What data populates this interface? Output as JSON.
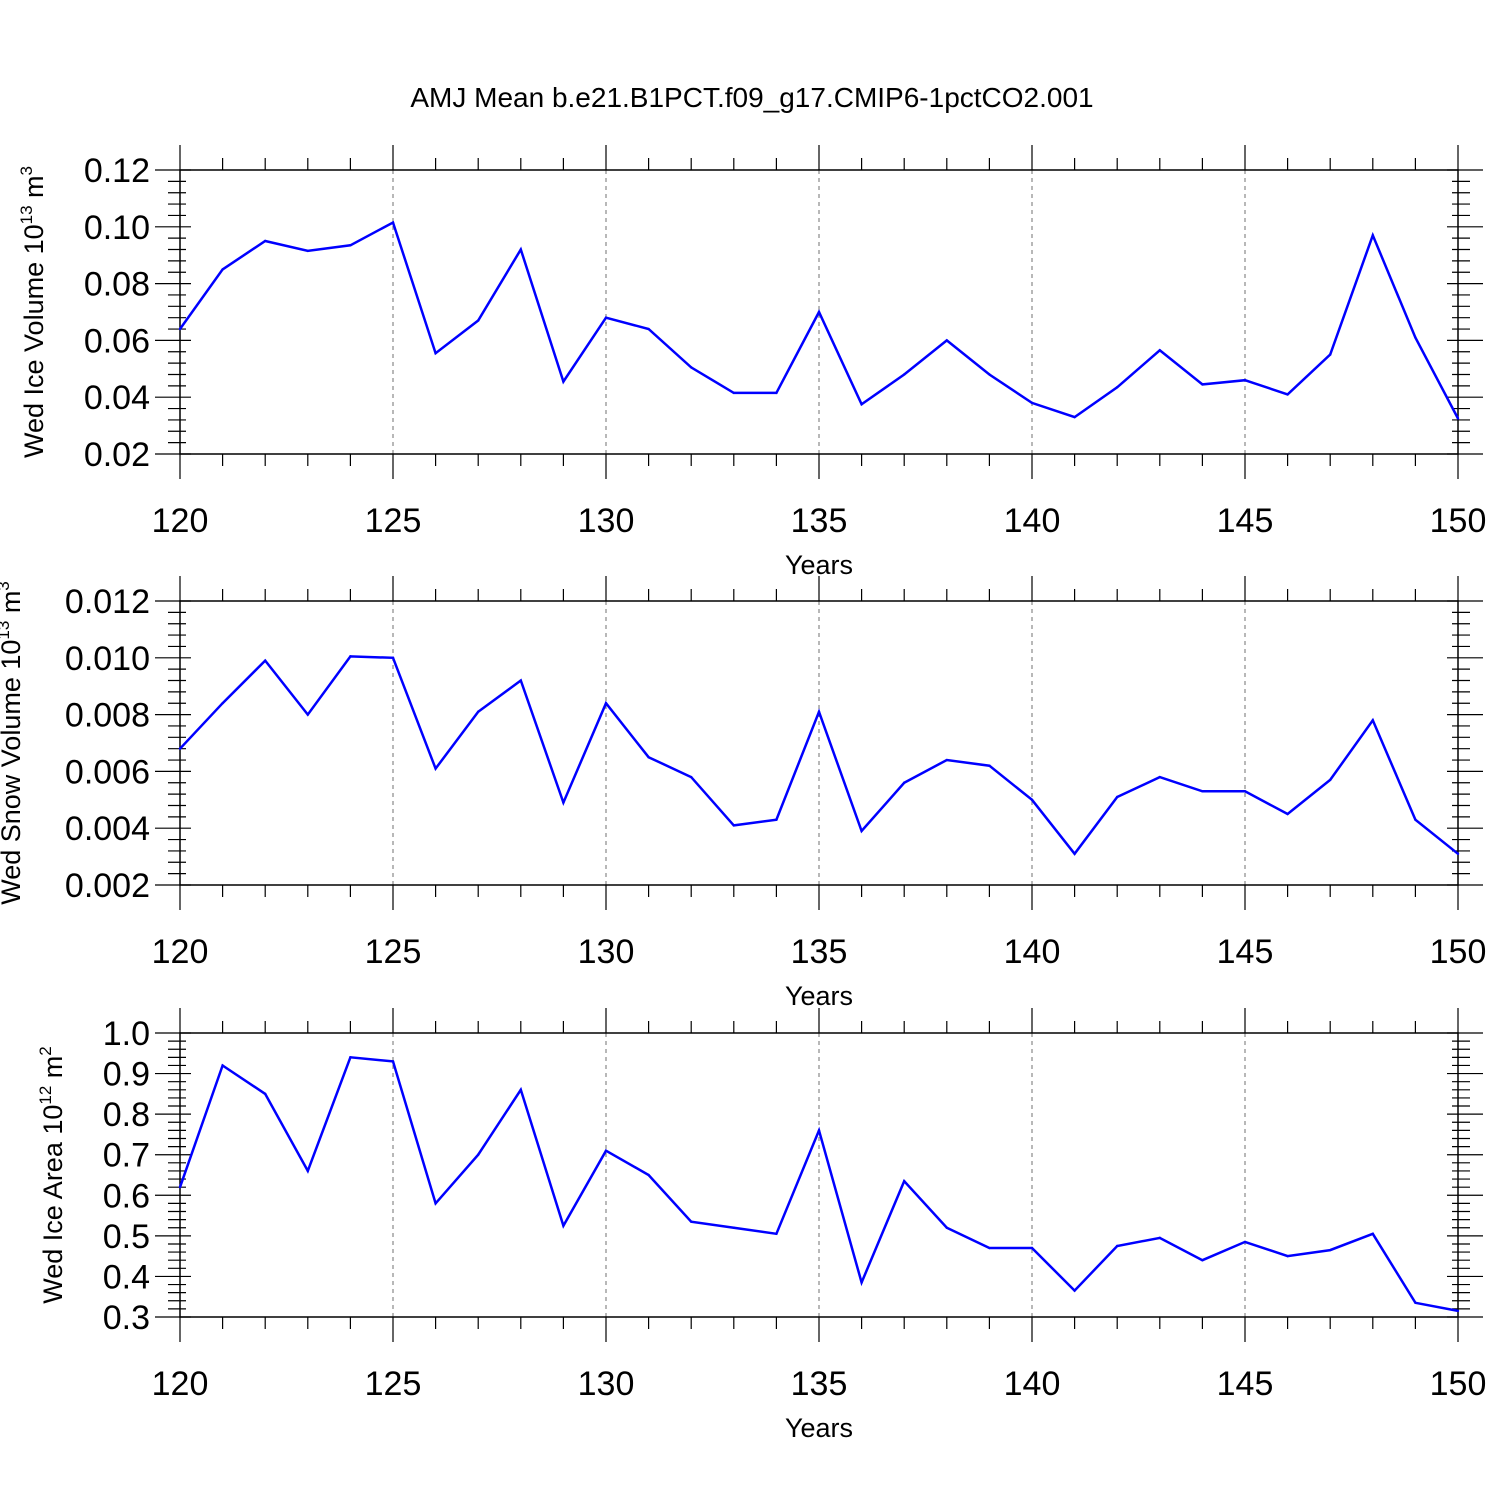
{
  "title": "AMJ Mean b.e21.B1PCT.f09_g17.CMIP6-1pctCO2.001",
  "line_color": "#0000ff",
  "chart_data": [
    {
      "type": "line",
      "xlabel": "Years",
      "ylabel": {
        "text": "Wed Ice Volume 10",
        "exp": "13",
        "unit": " m",
        "unit_exp": "3"
      },
      "xlim": [
        120,
        150
      ],
      "ylim": [
        0.02,
        0.12
      ],
      "xticks": [
        "120",
        "125",
        "130",
        "135",
        "140",
        "145",
        "150"
      ],
      "yticks": [
        "0.02",
        "0.04",
        "0.06",
        "0.08",
        "0.10",
        "0.12"
      ],
      "grid": "vertical dashed at major x ticks",
      "x": [
        120,
        121,
        122,
        123,
        124,
        125,
        126,
        127,
        128,
        129,
        130,
        131,
        132,
        133,
        134,
        135,
        136,
        137,
        138,
        139,
        140,
        141,
        142,
        143,
        144,
        145,
        146,
        147,
        148,
        149,
        150
      ],
      "values": [
        0.064,
        0.085,
        0.095,
        0.0915,
        0.0935,
        0.1015,
        0.0555,
        0.067,
        0.092,
        0.0455,
        0.068,
        0.064,
        0.0505,
        0.0415,
        0.0415,
        0.07,
        0.0375,
        0.048,
        0.06,
        0.048,
        0.038,
        0.033,
        0.0435,
        0.0565,
        0.0445,
        0.046,
        0.041,
        0.055,
        0.097,
        0.061,
        0.0325
      ]
    },
    {
      "type": "line",
      "xlabel": "Years",
      "ylabel": {
        "text": "Wed Snow Volume 10",
        "exp": "13",
        "unit": " m",
        "unit_exp": "3"
      },
      "xlim": [
        120,
        150
      ],
      "ylim": [
        0.002,
        0.012
      ],
      "xticks": [
        "120",
        "125",
        "130",
        "135",
        "140",
        "145",
        "150"
      ],
      "yticks": [
        "0.002",
        "0.004",
        "0.006",
        "0.008",
        "0.010",
        "0.012"
      ],
      "grid": "vertical dashed at major x ticks",
      "x": [
        120,
        121,
        122,
        123,
        124,
        125,
        126,
        127,
        128,
        129,
        130,
        131,
        132,
        133,
        134,
        135,
        136,
        137,
        138,
        139,
        140,
        141,
        142,
        143,
        144,
        145,
        146,
        147,
        148,
        149,
        150
      ],
      "values": [
        0.0068,
        0.0084,
        0.0099,
        0.008,
        0.01005,
        0.01,
        0.0061,
        0.0081,
        0.0092,
        0.0049,
        0.0084,
        0.0065,
        0.0058,
        0.0041,
        0.0043,
        0.0081,
        0.0039,
        0.0056,
        0.0064,
        0.0062,
        0.005,
        0.0031,
        0.0051,
        0.0058,
        0.0053,
        0.0053,
        0.0045,
        0.0057,
        0.0078,
        0.0043,
        0.0031
      ]
    },
    {
      "type": "line",
      "xlabel": "Years",
      "ylabel": {
        "text": "Wed Ice Area 10",
        "exp": "12",
        "unit": " m",
        "unit_exp": "2"
      },
      "xlim": [
        120,
        150
      ],
      "ylim": [
        0.3,
        1.0
      ],
      "xticks": [
        "120",
        "125",
        "130",
        "135",
        "140",
        "145",
        "150"
      ],
      "yticks": [
        "0.3",
        "0.4",
        "0.5",
        "0.6",
        "0.7",
        "0.8",
        "0.9",
        "1.0"
      ],
      "grid": "vertical dashed at major x ticks",
      "x": [
        120,
        121,
        122,
        123,
        124,
        125,
        126,
        127,
        128,
        129,
        130,
        131,
        132,
        133,
        134,
        135,
        136,
        137,
        138,
        139,
        140,
        141,
        142,
        143,
        144,
        145,
        146,
        147,
        148,
        149,
        150
      ],
      "values": [
        0.62,
        0.92,
        0.85,
        0.66,
        0.94,
        0.93,
        0.58,
        0.7,
        0.86,
        0.525,
        0.71,
        0.65,
        0.535,
        0.52,
        0.505,
        0.76,
        0.385,
        0.635,
        0.52,
        0.47,
        0.47,
        0.365,
        0.475,
        0.495,
        0.44,
        0.485,
        0.45,
        0.465,
        0.505,
        0.335,
        0.315
      ]
    }
  ]
}
